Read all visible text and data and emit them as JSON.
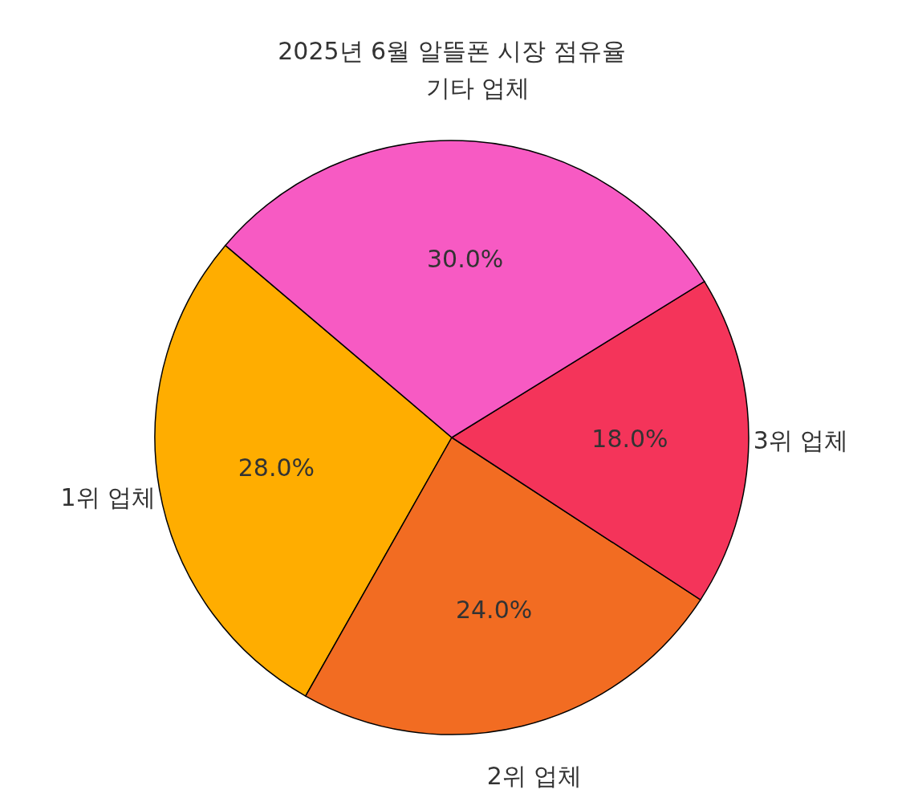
{
  "chart_data": {
    "type": "pie",
    "title": "2025년 6월 알뜰폰 시장 점유율",
    "categories": [
      "1위 업체",
      "2위 업체",
      "3위 업체",
      "기타 업체"
    ],
    "values": [
      28,
      24,
      18,
      30
    ],
    "colors": [
      "#ffad00",
      "#f26c22",
      "#f4345a",
      "#f75ac3"
    ],
    "value_labels": [
      "28.0%",
      "24.0%",
      "18.0%",
      "30.0%"
    ]
  }
}
